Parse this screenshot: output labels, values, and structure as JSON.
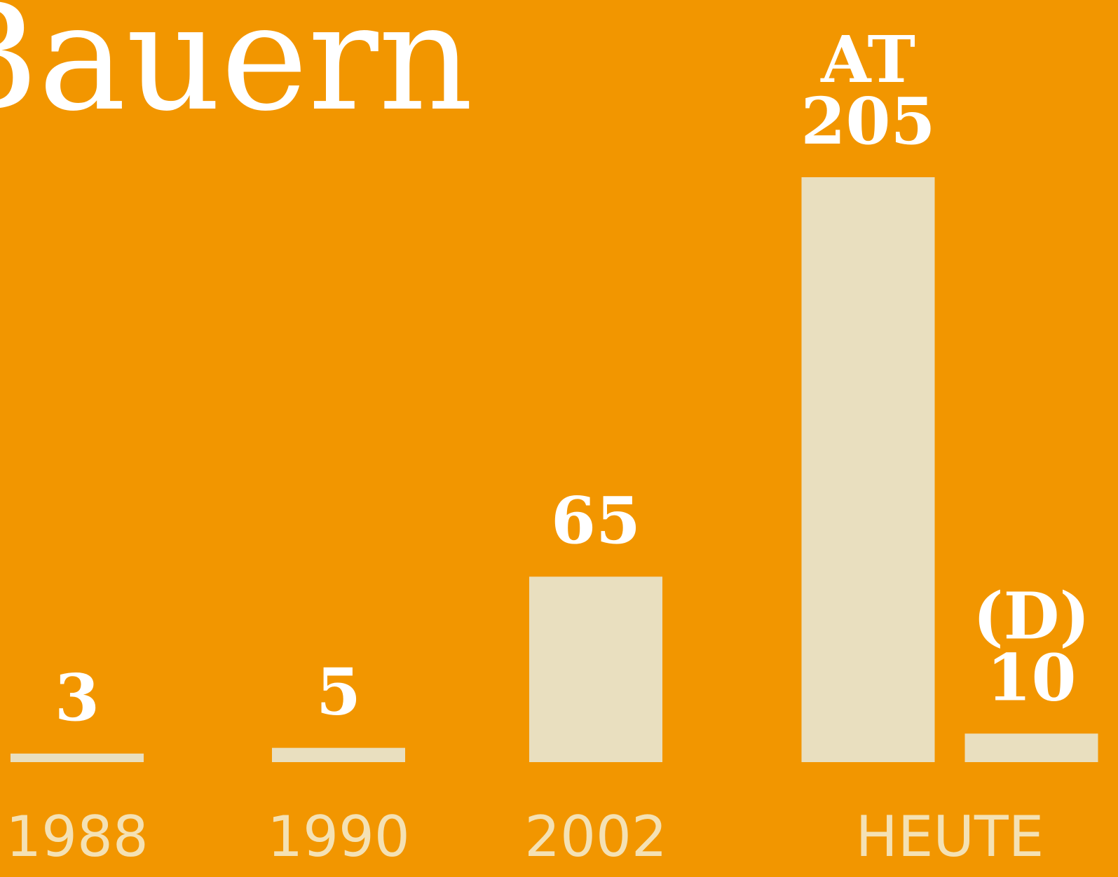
{
  "chart_data": {
    "type": "bar",
    "title": "Bauern",
    "categories": [
      "1988",
      "1990",
      "2002",
      "HEUTE"
    ],
    "series": [
      {
        "name": "AT",
        "color": "#e9dfbf",
        "values": [
          3,
          5,
          65,
          205
        ]
      },
      {
        "name": "(D)",
        "color": "#e9dfbf",
        "values": [
          null,
          null,
          null,
          10
        ]
      }
    ],
    "ylim": [
      0,
      205
    ],
    "background": "#f29600"
  }
}
